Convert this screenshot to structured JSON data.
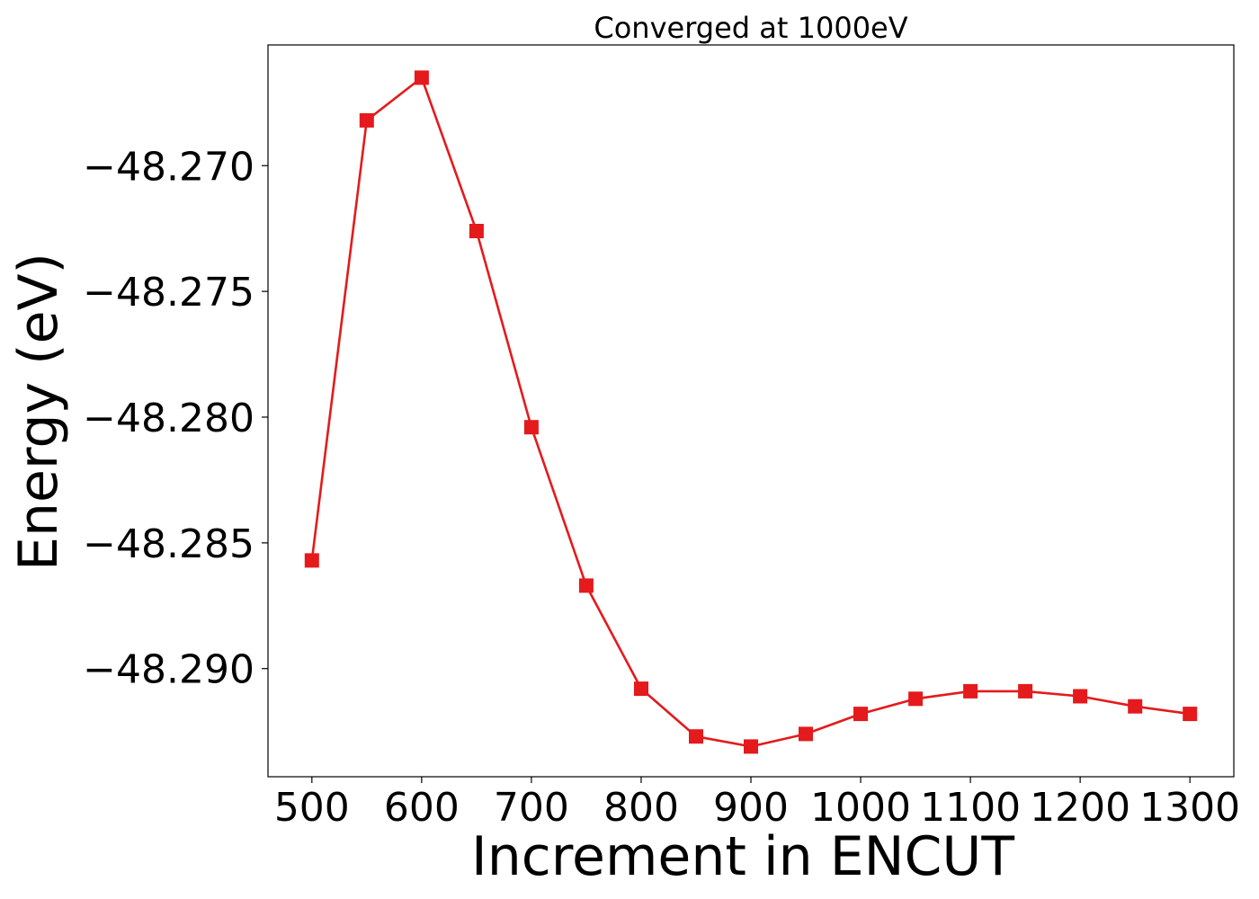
{
  "chart_data": {
    "type": "line",
    "title": "Converged at 1000eV",
    "xlabel": "Increment in ENCUT",
    "ylabel": "Energy (eV)",
    "xticks": [
      500,
      600,
      700,
      800,
      900,
      1000,
      1100,
      1200,
      1300
    ],
    "xtick_labels": [
      "500",
      "600",
      "700",
      "800",
      "900",
      "1000",
      "1100",
      "1200",
      "1300"
    ],
    "yticks": [
      -48.27,
      -48.275,
      -48.28,
      -48.285,
      -48.29
    ],
    "ytick_labels": [
      "−48.270",
      "−48.275",
      "−48.280",
      "−48.285",
      "−48.290"
    ],
    "xlim": [
      460,
      1340
    ],
    "ylim": [
      -48.2943,
      -48.2652
    ],
    "grid": false,
    "series": [
      {
        "color": "#e41a1c",
        "marker": "square",
        "x": [
          500,
          550,
          600,
          650,
          700,
          750,
          800,
          850,
          900,
          950,
          1000,
          1050,
          1100,
          1150,
          1200,
          1250,
          1300
        ],
        "y": [
          -48.2857,
          -48.2682,
          -48.2665,
          -48.2726,
          -48.2804,
          -48.2867,
          -48.2908,
          -48.2927,
          -48.2931,
          -48.2926,
          -48.2918,
          -48.2912,
          -48.2909,
          -48.2909,
          -48.2911,
          -48.2915,
          -48.2918
        ]
      }
    ]
  }
}
